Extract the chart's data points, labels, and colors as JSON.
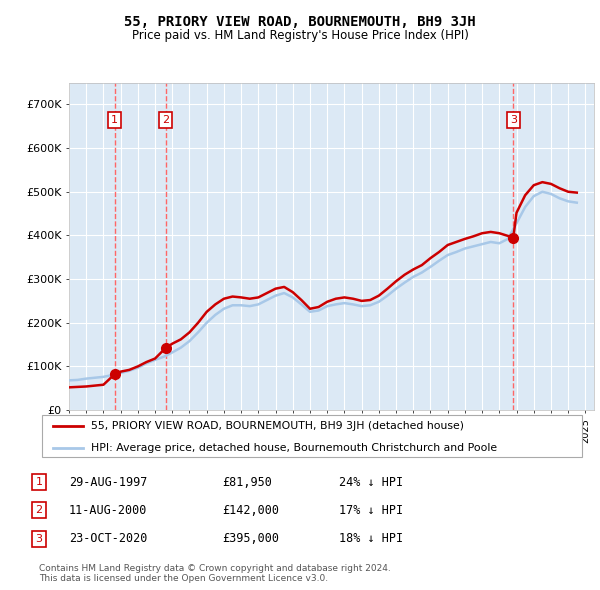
{
  "title": "55, PRIORY VIEW ROAD, BOURNEMOUTH, BH9 3JH",
  "subtitle": "Price paid vs. HM Land Registry's House Price Index (HPI)",
  "ylabel": "",
  "xlim_start": 1995.0,
  "xlim_end": 2025.5,
  "ylim": [
    0,
    750000
  ],
  "yticks": [
    0,
    100000,
    200000,
    300000,
    400000,
    500000,
    600000,
    700000
  ],
  "ytick_labels": [
    "£0",
    "£100K",
    "£200K",
    "£300K",
    "£400K",
    "£500K",
    "£600K",
    "£700K"
  ],
  "background_color": "#ffffff",
  "plot_bg_color": "#dce9f5",
  "grid_color": "#ffffff",
  "hpi_color": "#a8c8e8",
  "price_color": "#cc0000",
  "sale_marker_color": "#cc0000",
  "vline_color": "#ff6666",
  "sale_points": [
    {
      "year": 1997.65,
      "price": 81950,
      "label": "1"
    },
    {
      "year": 2000.61,
      "price": 142000,
      "label": "2"
    },
    {
      "year": 2020.81,
      "price": 395000,
      "label": "3"
    }
  ],
  "hpi_data": {
    "years": [
      1995.0,
      1995.5,
      1996.0,
      1996.5,
      1997.0,
      1997.5,
      1998.0,
      1998.5,
      1999.0,
      1999.5,
      2000.0,
      2000.5,
      2001.0,
      2001.5,
      2002.0,
      2002.5,
      2003.0,
      2003.5,
      2004.0,
      2004.5,
      2005.0,
      2005.5,
      2006.0,
      2006.5,
      2007.0,
      2007.5,
      2008.0,
      2008.5,
      2009.0,
      2009.5,
      2010.0,
      2010.5,
      2011.0,
      2011.5,
      2012.0,
      2012.5,
      2013.0,
      2013.5,
      2014.0,
      2014.5,
      2015.0,
      2015.5,
      2016.0,
      2016.5,
      2017.0,
      2017.5,
      2018.0,
      2018.5,
      2019.0,
      2019.5,
      2020.0,
      2020.5,
      2021.0,
      2021.5,
      2022.0,
      2022.5,
      2023.0,
      2023.5,
      2024.0,
      2024.5
    ],
    "values": [
      68000,
      69000,
      72000,
      74000,
      76000,
      80000,
      85000,
      90000,
      97000,
      107000,
      115000,
      122000,
      132000,
      143000,
      158000,
      178000,
      200000,
      218000,
      232000,
      240000,
      240000,
      238000,
      242000,
      252000,
      262000,
      268000,
      258000,
      242000,
      225000,
      228000,
      238000,
      242000,
      245000,
      242000,
      238000,
      240000,
      248000,
      262000,
      278000,
      292000,
      305000,
      315000,
      328000,
      342000,
      355000,
      362000,
      370000,
      375000,
      380000,
      385000,
      382000,
      392000,
      428000,
      465000,
      490000,
      500000,
      495000,
      485000,
      478000,
      475000
    ]
  },
  "price_line_data": {
    "years": [
      1995.0,
      1995.5,
      1996.0,
      1996.5,
      1997.0,
      1997.65,
      1998.0,
      1998.5,
      1999.0,
      1999.5,
      2000.0,
      2000.61,
      2001.0,
      2001.5,
      2002.0,
      2002.5,
      2003.0,
      2003.5,
      2004.0,
      2004.5,
      2005.0,
      2005.5,
      2006.0,
      2006.5,
      2007.0,
      2007.5,
      2008.0,
      2008.5,
      2009.0,
      2009.5,
      2010.0,
      2010.5,
      2011.0,
      2011.5,
      2012.0,
      2012.5,
      2013.0,
      2013.5,
      2014.0,
      2014.5,
      2015.0,
      2015.5,
      2016.0,
      2016.5,
      2017.0,
      2017.5,
      2018.0,
      2018.5,
      2019.0,
      2019.5,
      2020.0,
      2020.81,
      2021.0,
      2021.5,
      2022.0,
      2022.5,
      2023.0,
      2023.5,
      2024.0,
      2024.5
    ],
    "values": [
      52000,
      53000,
      54000,
      56000,
      58000,
      81950,
      88000,
      92000,
      100000,
      110000,
      118000,
      142000,
      152000,
      162000,
      178000,
      200000,
      225000,
      242000,
      255000,
      260000,
      258000,
      255000,
      258000,
      268000,
      278000,
      282000,
      270000,
      252000,
      232000,
      236000,
      248000,
      255000,
      258000,
      255000,
      250000,
      252000,
      262000,
      278000,
      295000,
      310000,
      322000,
      332000,
      348000,
      362000,
      378000,
      385000,
      392000,
      398000,
      405000,
      408000,
      405000,
      395000,
      452000,
      492000,
      515000,
      522000,
      518000,
      508000,
      500000,
      498000
    ]
  },
  "xtick_years": [
    1995,
    1996,
    1997,
    1998,
    1999,
    2000,
    2001,
    2002,
    2003,
    2004,
    2005,
    2006,
    2007,
    2008,
    2009,
    2010,
    2011,
    2012,
    2013,
    2014,
    2015,
    2016,
    2017,
    2018,
    2019,
    2020,
    2021,
    2022,
    2023,
    2024,
    2025
  ],
  "legend_line1": "55, PRIORY VIEW ROAD, BOURNEMOUTH, BH9 3JH (detached house)",
  "legend_line2": "HPI: Average price, detached house, Bournemouth Christchurch and Poole",
  "table_data": [
    {
      "num": "1",
      "date": "29-AUG-1997",
      "price": "£81,950",
      "pct": "24% ↓ HPI"
    },
    {
      "num": "2",
      "date": "11-AUG-2000",
      "price": "£142,000",
      "pct": "17% ↓ HPI"
    },
    {
      "num": "3",
      "date": "23-OCT-2020",
      "price": "£395,000",
      "pct": "18% ↓ HPI"
    }
  ],
  "footer": "Contains HM Land Registry data © Crown copyright and database right 2024.\nThis data is licensed under the Open Government Licence v3.0.",
  "sale_box_color": "#cc0000",
  "sale_box_text_color": "#cc0000"
}
